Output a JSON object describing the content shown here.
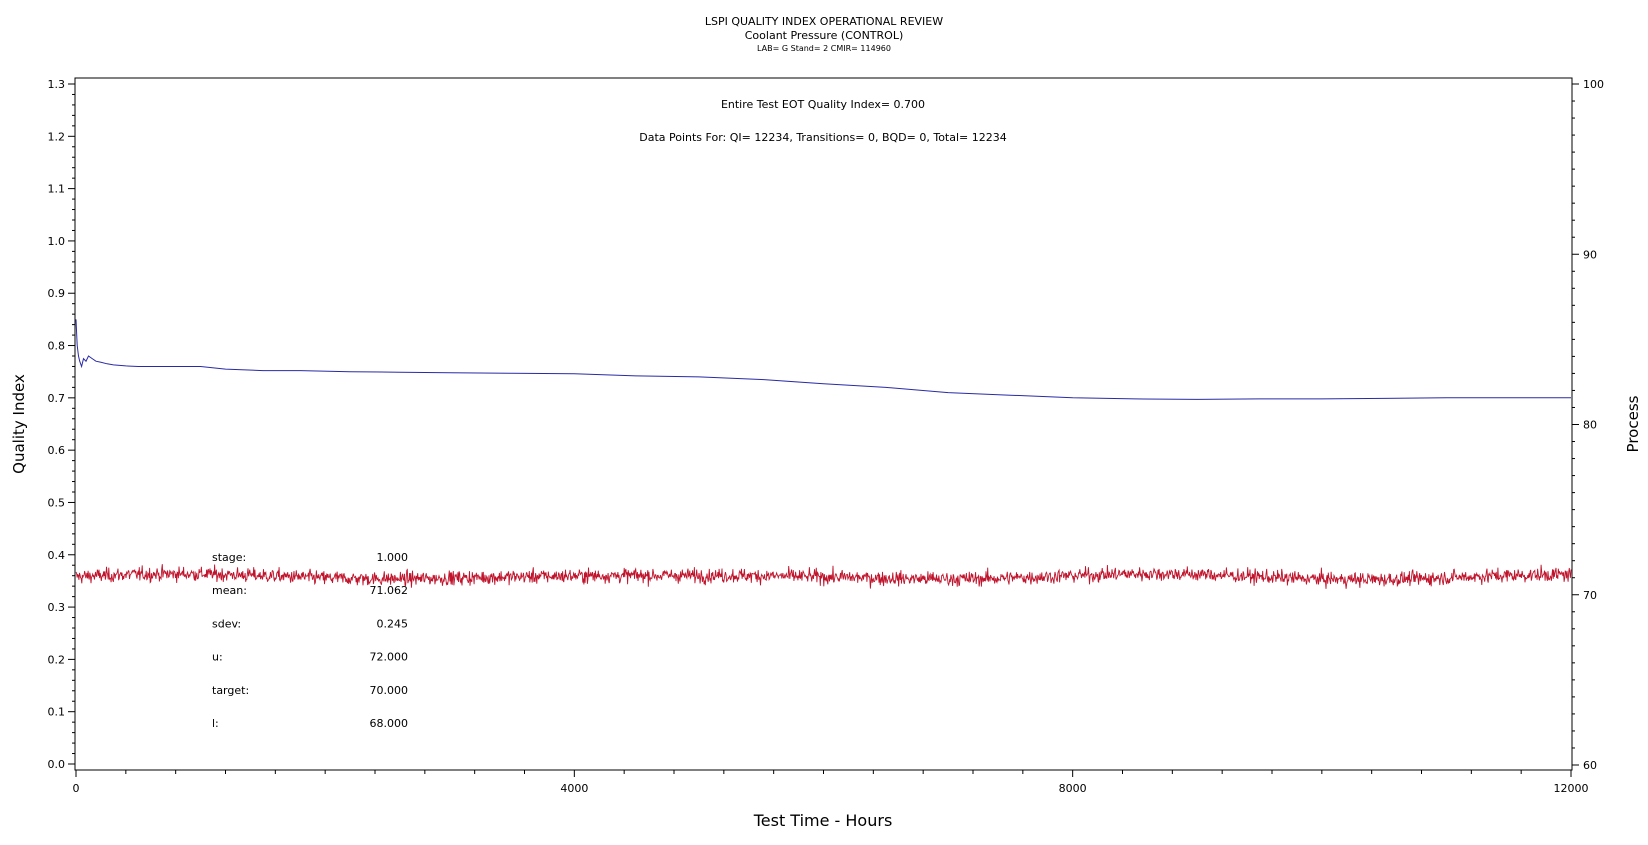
{
  "chart_data": {
    "type": "line",
    "title": "LSPI QUALITY INDEX OPERATIONAL REVIEW",
    "subtitle": "Coolant Pressure (CONTROL)",
    "subtitle2": "LAB= G Stand= 2 CMIR= 114960",
    "xlabel": "Test Time - Hours",
    "ylabel_left": "Quality Index",
    "ylabel_right": "Process",
    "xlim": [
      0,
      12000
    ],
    "ylim_left": [
      0,
      1.3
    ],
    "ylim_right": [
      60,
      100
    ],
    "x_ticks": [
      "0",
      "4000",
      "8000",
      "12000"
    ],
    "y_ticks_left": [
      "0.0",
      "0.1",
      "0.2",
      "0.3",
      "0.4",
      "0.5",
      "0.6",
      "0.7",
      "0.8",
      "0.9",
      "1.0",
      "1.1",
      "1.2",
      "1.3"
    ],
    "y_ticks_right": [
      "60",
      "70",
      "80",
      "90",
      "100"
    ],
    "annotations": [
      "Entire Test EOT Quality Index=   0.700",
      "Data Points For: QI= 12234, Transitions=     0, BQD=     0, Total= 12234"
    ],
    "stats": [
      {
        "label": "stage:",
        "value": "1.000"
      },
      {
        "label": "mean:",
        "value": "71.062"
      },
      {
        "label": "sdev:",
        "value": "0.245"
      },
      {
        "label": "u:",
        "value": "72.000"
      },
      {
        "label": "target:",
        "value": "70.000"
      },
      {
        "label": "l:",
        "value": "68.000"
      }
    ],
    "series": [
      {
        "color": "#2a2aa8",
        "axis": "left",
        "x": [
          0,
          10,
          20,
          30,
          45,
          60,
          80,
          100,
          130,
          160,
          200,
          250,
          300,
          400,
          500,
          600,
          800,
          1000,
          1200,
          1500,
          1800,
          2200,
          2600,
          3000,
          3500,
          4000,
          4500,
          5000,
          5500,
          6000,
          6500,
          7000,
          7500,
          8000,
          8500,
          9000,
          9500,
          10000,
          10500,
          11000,
          11500,
          12000
        ],
        "values": [
          0.85,
          0.8,
          0.78,
          0.77,
          0.76,
          0.775,
          0.77,
          0.78,
          0.775,
          0.77,
          0.768,
          0.765,
          0.763,
          0.761,
          0.76,
          0.76,
          0.76,
          0.76,
          0.755,
          0.752,
          0.752,
          0.75,
          0.749,
          0.748,
          0.747,
          0.746,
          0.742,
          0.74,
          0.735,
          0.727,
          0.72,
          0.71,
          0.705,
          0.7,
          0.698,
          0.697,
          0.698,
          0.698,
          0.699,
          0.7,
          0.7,
          0.7
        ]
      },
      {
        "color": "#c0142c",
        "axis": "right",
        "x_start": 0,
        "x_end": 12000,
        "mean": 71.062,
        "sdev": 0.245,
        "points": 12234
      }
    ]
  }
}
